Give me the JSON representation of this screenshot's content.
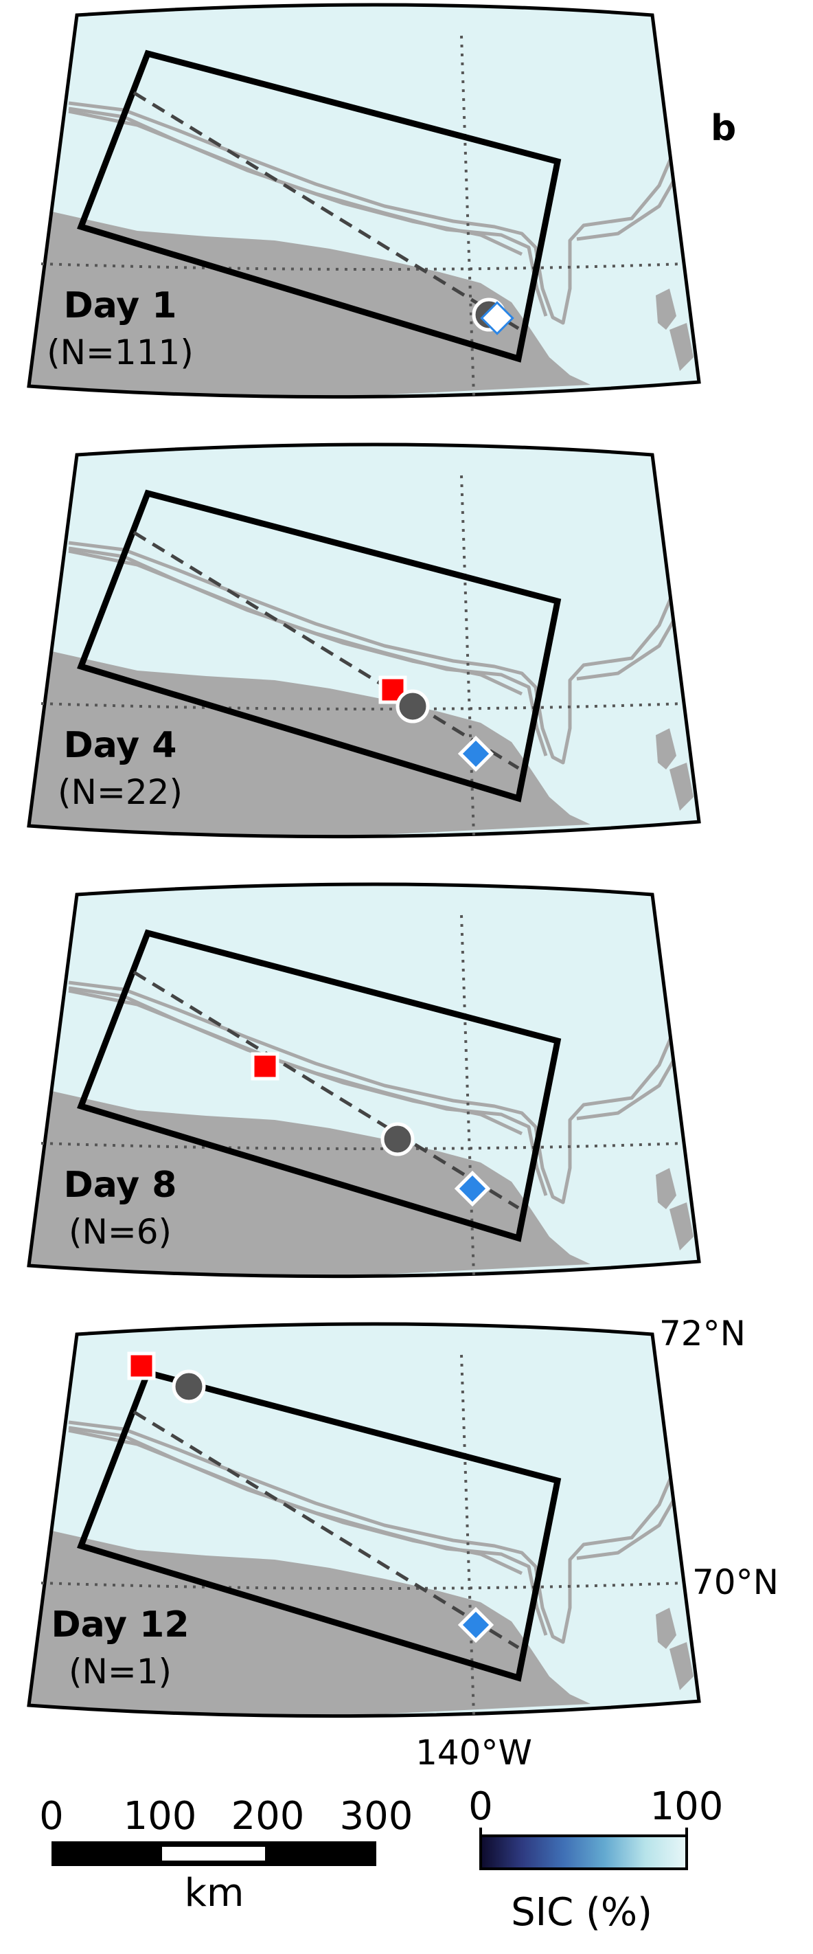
{
  "panel_letter": "b",
  "panels": [
    {
      "day": "Day 1",
      "count": "(N=111)"
    },
    {
      "day": "Day 4",
      "count": "(N=22)"
    },
    {
      "day": "Day 8",
      "count": "(N=6)"
    },
    {
      "day": "Day 12",
      "count": "(N=1)"
    }
  ],
  "graticule": {
    "lat_north": "72°N",
    "lat_south": "70°N",
    "lon": "140°W"
  },
  "scale_bar": {
    "ticks": [
      "0",
      "100",
      "200",
      "300"
    ],
    "unit": "km"
  },
  "colorbar": {
    "min": "0",
    "max": "100",
    "label": "SIC (%)",
    "colors": [
      "#0d0a2b",
      "#2e3a80",
      "#3f6fb5",
      "#63a9d0",
      "#b7e3ea",
      "#e8f7f8"
    ]
  },
  "colors": {
    "land": "#a9a9a9",
    "isobath": "#a8a8a8",
    "box": "#000000",
    "square": "#ff0000",
    "circle": "#555555",
    "diamond": "#2b86e6"
  }
}
